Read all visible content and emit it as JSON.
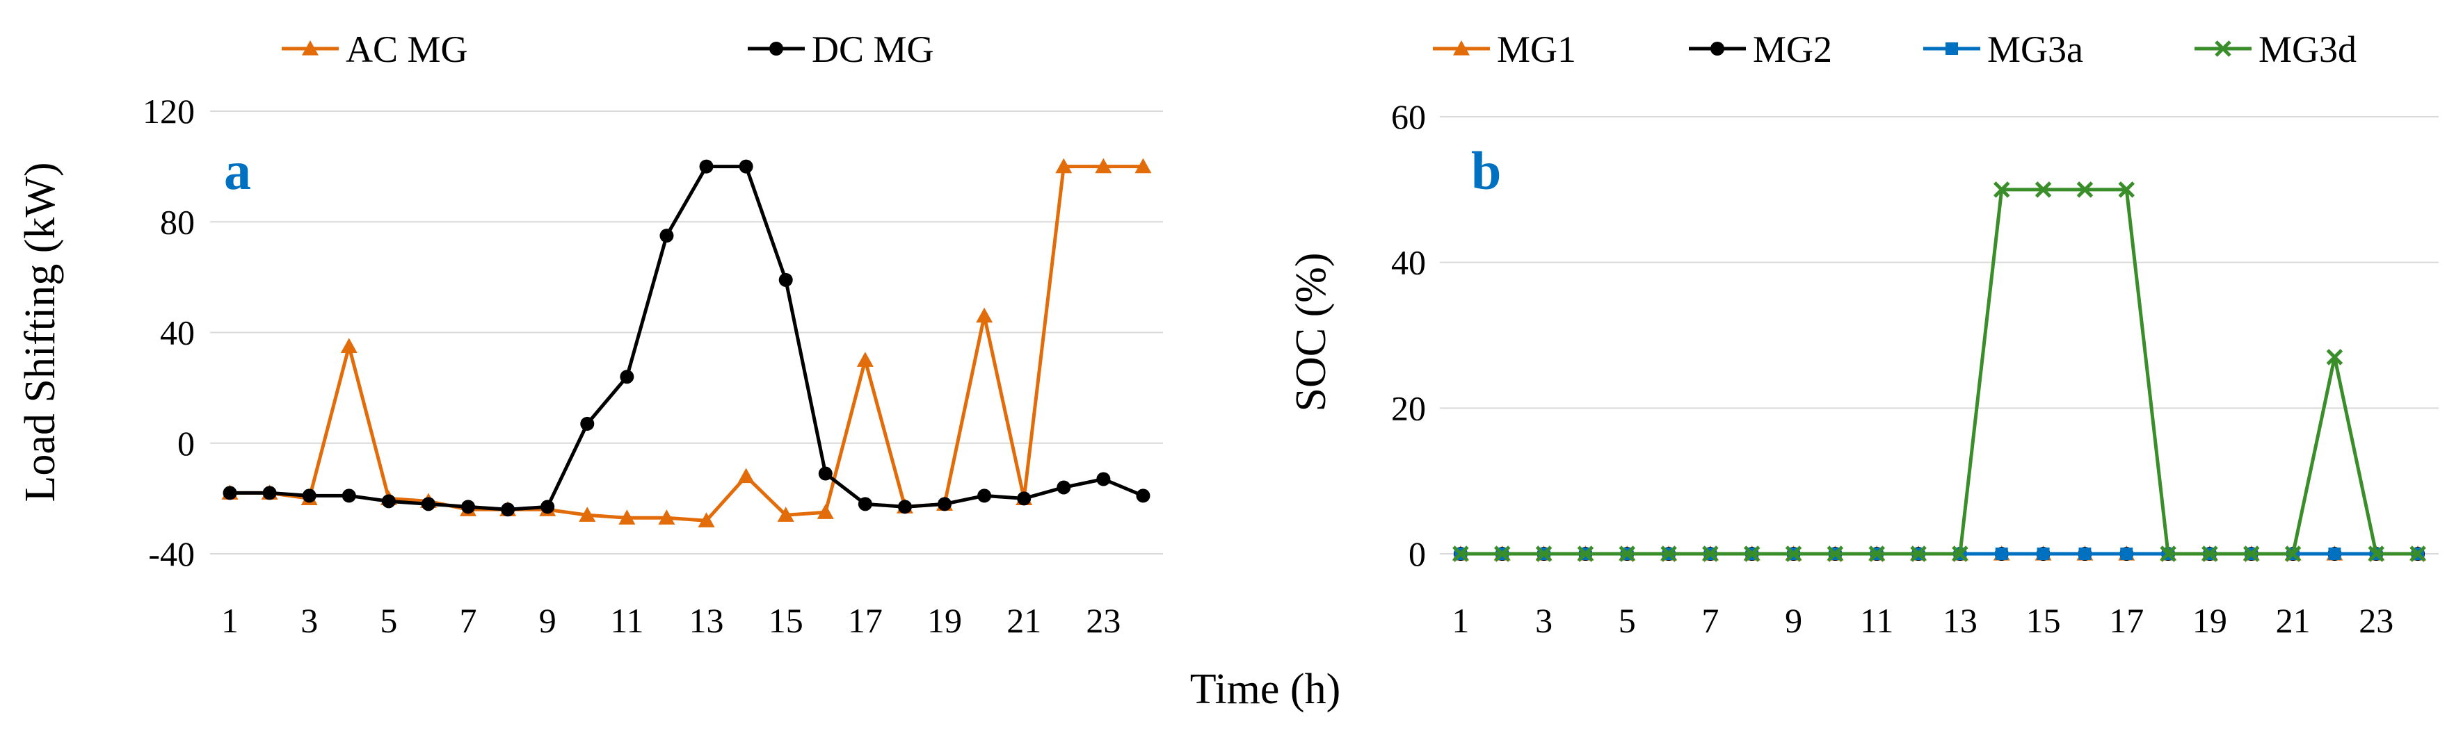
{
  "colors": {
    "orange": "#E36C0A",
    "black": "#000000",
    "blue": "#0070C0",
    "green": "#3A8E2A",
    "panel_label": "#0070C0",
    "grid": "#D9D9D9"
  },
  "shared_xlabel": "Time (h)",
  "chart_data": [
    {
      "type": "line",
      "panel_label": "a",
      "title": "",
      "xlabel": "Time (h)",
      "ylabel": "Load Shifting (kW)",
      "ylim": [
        -40,
        120
      ],
      "yticks": [
        -40,
        0,
        40,
        80,
        120
      ],
      "x": [
        1,
        2,
        3,
        4,
        5,
        6,
        7,
        8,
        9,
        10,
        11,
        12,
        13,
        14,
        15,
        16,
        17,
        18,
        19,
        20,
        21,
        22,
        23,
        24
      ],
      "xticks": [
        1,
        3,
        5,
        7,
        9,
        11,
        13,
        15,
        17,
        19,
        21,
        23
      ],
      "grid": true,
      "legend_position": "top",
      "series": [
        {
          "name": "AC MG",
          "color": "#E36C0A",
          "marker": "triangle",
          "values": [
            -18,
            -18,
            -20,
            35,
            -20,
            -21,
            -24,
            -24,
            -24,
            -26,
            -27,
            -27,
            -28,
            -12,
            -26,
            -25,
            30,
            -23,
            -22,
            46,
            -20,
            100,
            100,
            100
          ]
        },
        {
          "name": "DC MG",
          "color": "#000000",
          "marker": "circle",
          "values": [
            -18,
            -18,
            -19,
            -19,
            -21,
            -22,
            -23,
            -24,
            -23,
            7,
            24,
            75,
            100,
            100,
            59,
            -11,
            -22,
            -23,
            -22,
            -19,
            -20,
            -16,
            -13,
            -19
          ]
        }
      ]
    },
    {
      "type": "line",
      "panel_label": "b",
      "title": "",
      "xlabel": "Time (h)",
      "ylabel": "SOC (%)",
      "ylim": [
        0,
        60
      ],
      "yticks": [
        0,
        20,
        40,
        60
      ],
      "x": [
        1,
        2,
        3,
        4,
        5,
        6,
        7,
        8,
        9,
        10,
        11,
        12,
        13,
        14,
        15,
        16,
        17,
        18,
        19,
        20,
        21,
        22,
        23,
        24
      ],
      "xticks": [
        1,
        3,
        5,
        7,
        9,
        11,
        13,
        15,
        17,
        19,
        21,
        23
      ],
      "grid": true,
      "legend_position": "top",
      "series": [
        {
          "name": "MG1",
          "color": "#E36C0A",
          "marker": "triangle",
          "values": [
            0,
            0,
            0,
            0,
            0,
            0,
            0,
            0,
            0,
            0,
            0,
            0,
            0,
            0,
            0,
            0,
            0,
            0,
            0,
            0,
            0,
            0,
            0,
            0
          ]
        },
        {
          "name": "MG2",
          "color": "#000000",
          "marker": "circle",
          "values": [
            0,
            0,
            0,
            0,
            0,
            0,
            0,
            0,
            0,
            0,
            0,
            0,
            0,
            0,
            0,
            0,
            0,
            0,
            0,
            0,
            0,
            0,
            0,
            0
          ]
        },
        {
          "name": "MG3a",
          "color": "#0070C0",
          "marker": "square",
          "values": [
            0,
            0,
            0,
            0,
            0,
            0,
            0,
            0,
            0,
            0,
            0,
            0,
            0,
            0,
            0,
            0,
            0,
            0,
            0,
            0,
            0,
            0,
            0,
            0
          ]
        },
        {
          "name": "MG3d",
          "color": "#3A8E2A",
          "marker": "x",
          "values": [
            0,
            0,
            0,
            0,
            0,
            0,
            0,
            0,
            0,
            0,
            0,
            0,
            0,
            50,
            50,
            50,
            50,
            0,
            0,
            0,
            0,
            27,
            0,
            0
          ]
        }
      ]
    }
  ]
}
